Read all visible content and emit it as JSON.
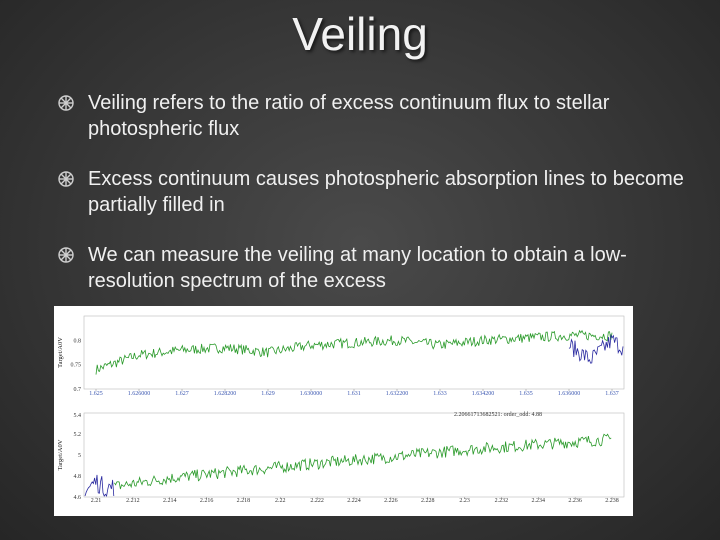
{
  "slide": {
    "title": "Veiling",
    "bullets": [
      {
        "text": "Veiling refers to the ratio of excess continuum flux to stellar photospheric flux"
      },
      {
        "text": "Excess continuum causes photospheric absorption lines to become partially filled in"
      },
      {
        "text": "We can measure the veiling at many location to obtain a low-resolution spectrum of the excess"
      }
    ]
  },
  "chart_data": [
    {
      "type": "line",
      "ylabel": "Target/A0V",
      "x_tick_labels": [
        "1.625",
        "1.626000",
        "1.627",
        "1.628200",
        "1.629",
        "1.630000",
        "1.631",
        "1.632200",
        "1.633",
        "1.634200",
        "1.635",
        "1.636000",
        "1.637"
      ],
      "y_tick_labels": [
        "0.8",
        "0.75",
        "0.7"
      ],
      "ylim": [
        0.7,
        0.85
      ],
      "series": [
        {
          "color": "#2a9a2a",
          "x": [
            1.625,
            1.626,
            1.627,
            1.628,
            1.629,
            1.63,
            1.631,
            1.632,
            1.633,
            1.634,
            1.635,
            1.636,
            1.637
          ],
          "values": [
            0.74,
            0.77,
            0.78,
            0.785,
            0.775,
            0.79,
            0.795,
            0.8,
            0.79,
            0.8,
            0.805,
            0.81,
            0.81
          ]
        },
        {
          "color": "#2a2aa0",
          "x": [
            1.636,
            1.6365,
            1.637,
            1.6375
          ],
          "values": [
            0.79,
            0.76,
            0.8,
            0.77
          ]
        }
      ]
    },
    {
      "type": "line",
      "ylabel": "Target/A0V",
      "annotation": "2.20661713682521: order_odd: 4.88",
      "x_tick_labels": [
        "2.21",
        "2.212",
        "2.214",
        "2.216",
        "2.218",
        "2.22",
        "2.222",
        "2.224",
        "2.226",
        "2.228",
        "2.23",
        "2.232",
        "2.234",
        "2.236",
        "2.238"
      ],
      "y_tick_labels": [
        "5.4",
        "5.2",
        "5",
        "4.8",
        "4.6"
      ],
      "ylim": [
        4.6,
        5.4
      ],
      "series": [
        {
          "color": "#2a9a2a",
          "x": [
            2.211,
            2.214,
            2.218,
            2.222,
            2.226,
            2.23,
            2.234,
            2.238
          ],
          "values": [
            4.7,
            4.78,
            4.85,
            4.92,
            4.98,
            5.05,
            5.1,
            5.15
          ]
        },
        {
          "color": "#2a2aa0",
          "x": [
            2.209,
            2.2095,
            2.21,
            2.2105,
            2.211
          ],
          "values": [
            4.72,
            4.67,
            4.75,
            4.68,
            4.7
          ]
        }
      ]
    }
  ]
}
